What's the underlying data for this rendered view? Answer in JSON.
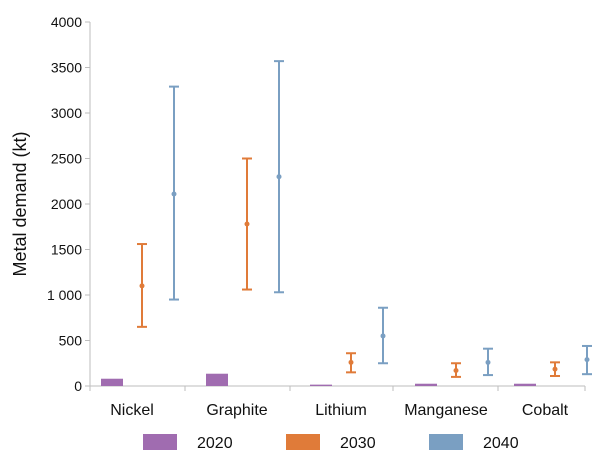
{
  "chart_data": {
    "type": "bar",
    "xlabel": "",
    "ylabel": "Metal demand (kt)",
    "ylim": [
      0,
      4000
    ],
    "yticks": [
      {
        "value": 0,
        "label": "0"
      },
      {
        "value": 500,
        "label": "500"
      },
      {
        "value": 1000,
        "label": "1 000"
      },
      {
        "value": 1500,
        "label": "1500"
      },
      {
        "value": 2000,
        "label": "2000"
      },
      {
        "value": 2500,
        "label": "2500"
      },
      {
        "value": 3000,
        "label": "3000"
      },
      {
        "value": 3500,
        "label": "3500"
      },
      {
        "value": 4000,
        "label": "4000"
      }
    ],
    "categories": [
      "Nickel",
      "Graphite",
      "Lithium",
      "Manganese",
      "Cobalt"
    ],
    "grid": false,
    "legend_position": "bottom",
    "series": [
      {
        "name": "2020",
        "kind": "bar",
        "color": "#a06cb0",
        "values": [
          80,
          135,
          15,
          25,
          25
        ]
      },
      {
        "name": "2030",
        "kind": "range",
        "color": "#e07b39",
        "mid": [
          1100,
          1780,
          260,
          170,
          185
        ],
        "low": [
          650,
          1060,
          150,
          100,
          110
        ],
        "high": [
          1560,
          2500,
          360,
          250,
          260
        ]
      },
      {
        "name": "2040",
        "kind": "range",
        "color": "#7a9fc2",
        "mid": [
          2110,
          2300,
          550,
          260,
          290
        ],
        "low": [
          950,
          1030,
          250,
          120,
          130
        ],
        "high": [
          3290,
          3570,
          860,
          410,
          440
        ]
      }
    ]
  }
}
